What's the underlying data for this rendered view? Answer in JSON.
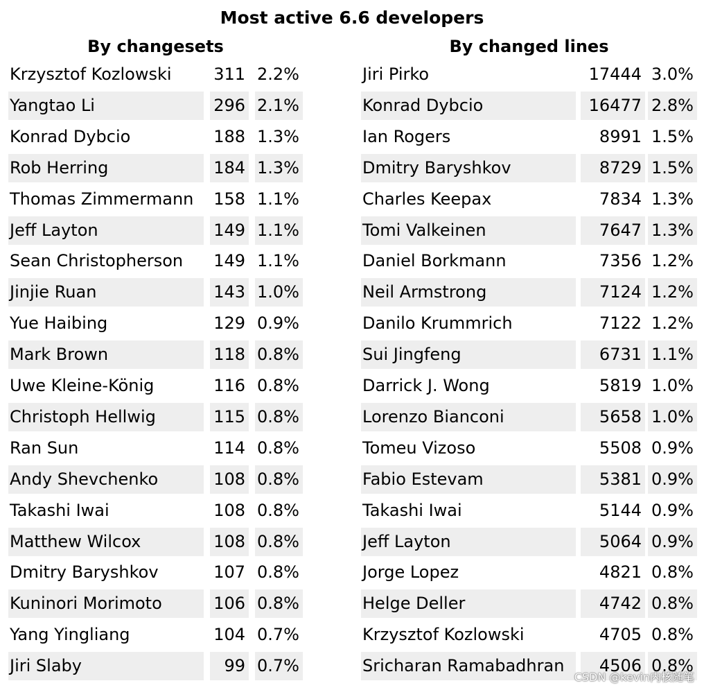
{
  "title": "Most active 6.6 developers",
  "by_changesets": {
    "title": "By changesets",
    "rows": [
      {
        "name": "Krzysztof Kozlowski",
        "count": "311",
        "pct": "2.2%"
      },
      {
        "name": "Yangtao Li",
        "count": "296",
        "pct": "2.1%"
      },
      {
        "name": "Konrad Dybcio",
        "count": "188",
        "pct": "1.3%"
      },
      {
        "name": "Rob Herring",
        "count": "184",
        "pct": "1.3%"
      },
      {
        "name": "Thomas Zimmermann",
        "count": "158",
        "pct": "1.1%"
      },
      {
        "name": "Jeff Layton",
        "count": "149",
        "pct": "1.1%"
      },
      {
        "name": "Sean Christopherson",
        "count": "149",
        "pct": "1.1%"
      },
      {
        "name": "Jinjie Ruan",
        "count": "143",
        "pct": "1.0%"
      },
      {
        "name": "Yue Haibing",
        "count": "129",
        "pct": "0.9%"
      },
      {
        "name": "Mark Brown",
        "count": "118",
        "pct": "0.8%"
      },
      {
        "name": "Uwe Kleine-König",
        "count": "116",
        "pct": "0.8%"
      },
      {
        "name": "Christoph Hellwig",
        "count": "115",
        "pct": "0.8%"
      },
      {
        "name": "Ran Sun",
        "count": "114",
        "pct": "0.8%"
      },
      {
        "name": "Andy Shevchenko",
        "count": "108",
        "pct": "0.8%"
      },
      {
        "name": "Takashi Iwai",
        "count": "108",
        "pct": "0.8%"
      },
      {
        "name": "Matthew Wilcox",
        "count": "108",
        "pct": "0.8%"
      },
      {
        "name": "Dmitry Baryshkov",
        "count": "107",
        "pct": "0.8%"
      },
      {
        "name": "Kuninori Morimoto",
        "count": "106",
        "pct": "0.8%"
      },
      {
        "name": "Yang Yingliang",
        "count": "104",
        "pct": "0.7%"
      },
      {
        "name": "Jiri Slaby",
        "count": "99",
        "pct": "0.7%"
      }
    ]
  },
  "by_changed_lines": {
    "title": "By changed lines",
    "rows": [
      {
        "name": "Jiri Pirko",
        "count": "17444",
        "pct": "3.0%"
      },
      {
        "name": "Konrad Dybcio",
        "count": "16477",
        "pct": "2.8%"
      },
      {
        "name": "Ian Rogers",
        "count": "8991",
        "pct": "1.5%"
      },
      {
        "name": "Dmitry Baryshkov",
        "count": "8729",
        "pct": "1.5%"
      },
      {
        "name": "Charles Keepax",
        "count": "7834",
        "pct": "1.3%"
      },
      {
        "name": "Tomi Valkeinen",
        "count": "7647",
        "pct": "1.3%"
      },
      {
        "name": "Daniel Borkmann",
        "count": "7356",
        "pct": "1.2%"
      },
      {
        "name": "Neil Armstrong",
        "count": "7124",
        "pct": "1.2%"
      },
      {
        "name": "Danilo Krummrich",
        "count": "7122",
        "pct": "1.2%"
      },
      {
        "name": "Sui Jingfeng",
        "count": "6731",
        "pct": "1.1%"
      },
      {
        "name": "Darrick J. Wong",
        "count": "5819",
        "pct": "1.0%"
      },
      {
        "name": "Lorenzo Bianconi",
        "count": "5658",
        "pct": "1.0%"
      },
      {
        "name": "Tomeu Vizoso",
        "count": "5508",
        "pct": "0.9%"
      },
      {
        "name": "Fabio Estevam",
        "count": "5381",
        "pct": "0.9%"
      },
      {
        "name": "Takashi Iwai",
        "count": "5144",
        "pct": "0.9%"
      },
      {
        "name": "Jeff Layton",
        "count": "5064",
        "pct": "0.9%"
      },
      {
        "name": "Jorge Lopez",
        "count": "4821",
        "pct": "0.8%"
      },
      {
        "name": "Helge Deller",
        "count": "4742",
        "pct": "0.8%"
      },
      {
        "name": "Krzysztof Kozlowski",
        "count": "4705",
        "pct": "0.8%"
      },
      {
        "name": "Sricharan Ramabadhran",
        "count": "4506",
        "pct": "0.8%"
      }
    ]
  },
  "watermark": "CSDN @kevin内核随笔",
  "colors": {
    "row_shade": "#eeeeee",
    "text": "#000000",
    "background": "#ffffff"
  }
}
